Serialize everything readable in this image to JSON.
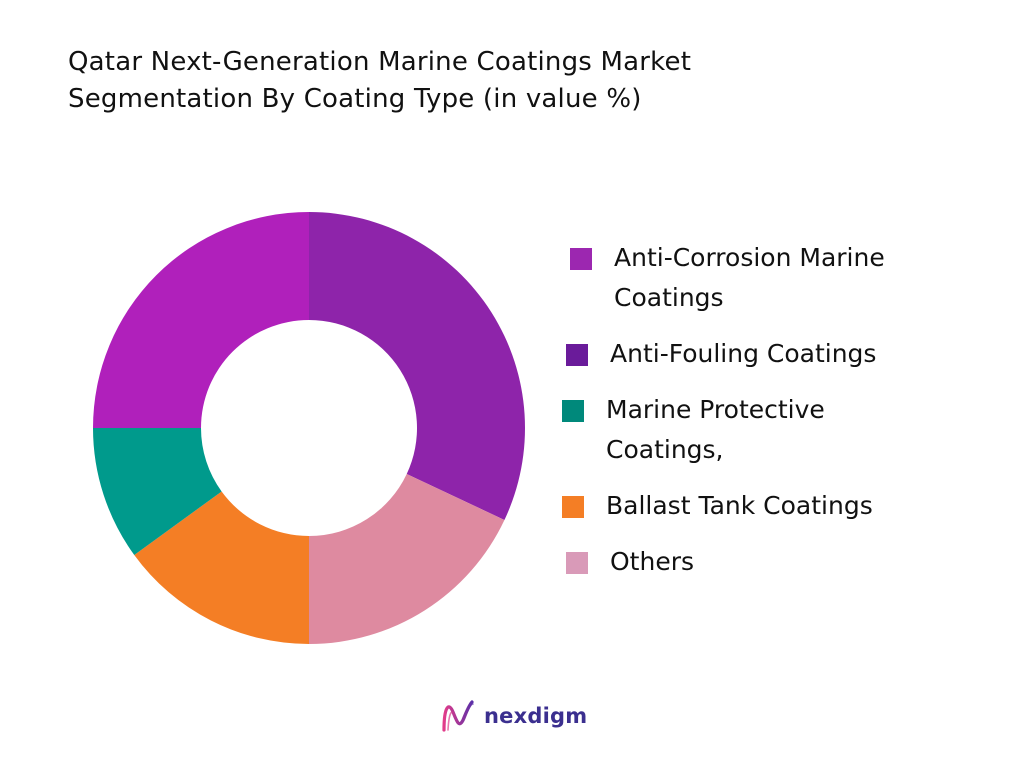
{
  "title_lines": [
    "Qatar Next-Generation Marine Coatings Market",
    "Segmentation By Coating Type (in value %)"
  ],
  "chart_data": {
    "type": "pie",
    "donut": true,
    "title": "Qatar Next-Generation Marine Coatings Market Segmentation By Coating Type (in value %)",
    "legend_position": "right",
    "slices": [
      {
        "label": "Anti-Corrosion Marine Coatings",
        "value": 32,
        "color": "#8e24aa"
      },
      {
        "label": "Others",
        "value": 18,
        "color": "#de8aa0"
      },
      {
        "label": "Ballast Tank Coatings",
        "value": 15,
        "color": "#f47e25"
      },
      {
        "label": "Marine Protective Coatings,",
        "value": 10,
        "color": "#009a8c"
      },
      {
        "label": "Anti-Fouling Coatings",
        "value": 25,
        "color": "#b020bb"
      }
    ]
  },
  "legend": [
    {
      "label": "Anti-Corrosion Marine Coatings",
      "color": "#9c27b0",
      "lines": [
        "Anti-Corrosion Marine",
        "Coatings"
      ]
    },
    {
      "label": "Anti-Fouling Coatings",
      "color": "#6a1b9a",
      "lines": [
        "Anti-Fouling Coatings"
      ]
    },
    {
      "label": "Marine Protective Coatings,",
      "color": "#00897b",
      "lines": [
        "Marine Protective",
        "Coatings,"
      ]
    },
    {
      "label": "Ballast Tank Coatings",
      "color": "#f47e25",
      "lines": [
        "Ballast Tank Coatings"
      ]
    },
    {
      "label": "Others",
      "color": "#d99ab8",
      "lines": [
        "Others"
      ]
    }
  ],
  "brand": {
    "name": "nexdigm",
    "icon": "nexdigm-logo-icon",
    "colors": [
      "#e23c8a",
      "#5b2fa8"
    ]
  }
}
